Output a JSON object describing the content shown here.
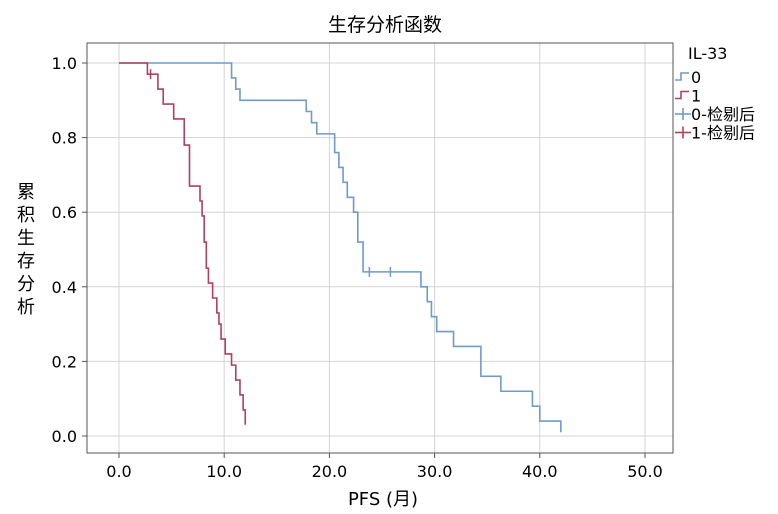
{
  "chart_data": {
    "type": "line",
    "title": "生存分析函数",
    "xlabel": "PFS (月)",
    "ylabel": "累积生存分析",
    "xlim": [
      0,
      50
    ],
    "ylim": [
      0,
      1
    ],
    "x_ticks": [
      "0.0",
      "10.0",
      "20.0",
      "30.0",
      "40.0",
      "50.0"
    ],
    "y_ticks": [
      "0.0",
      "0.2",
      "0.4",
      "0.6",
      "0.8",
      "1.0"
    ],
    "grid": true,
    "legend": {
      "title": "IL-33",
      "placement": "right",
      "entries": [
        "0",
        "1",
        "0-检剔后",
        "1-检剔后"
      ]
    },
    "series": [
      {
        "name": "0",
        "color": "#6f9bc8",
        "x": [
          0,
          10.7,
          11.1,
          11.5,
          12.0,
          17.8,
          18.3,
          18.8,
          19.3,
          20.5,
          20.9,
          21.3,
          21.7,
          22.3,
          22.7,
          23.2,
          28.7,
          29.3,
          29.7,
          30.2,
          31.8,
          34.4,
          36.3,
          39.3,
          40.0,
          42.0
        ],
        "y": [
          1.0,
          0.96,
          0.93,
          0.9,
          0.9,
          0.87,
          0.84,
          0.81,
          0.81,
          0.76,
          0.72,
          0.68,
          0.64,
          0.6,
          0.52,
          0.44,
          0.4,
          0.36,
          0.32,
          0.28,
          0.24,
          0.16,
          0.12,
          0.08,
          0.04,
          0.01
        ]
      },
      {
        "name": "1",
        "color": "#b04060",
        "x": [
          0,
          2.7,
          3.7,
          4.2,
          5.2,
          6.2,
          6.7,
          7.7,
          7.9,
          8.1,
          8.3,
          8.5,
          8.9,
          9.3,
          9.5,
          9.7,
          10.1,
          10.7,
          11.1,
          11.5,
          11.8,
          12.0
        ],
        "y": [
          1.0,
          0.97,
          0.93,
          0.89,
          0.85,
          0.78,
          0.67,
          0.63,
          0.59,
          0.52,
          0.45,
          0.41,
          0.37,
          0.33,
          0.3,
          0.26,
          0.22,
          0.19,
          0.15,
          0.11,
          0.07,
          0.03
        ]
      }
    ],
    "censored": [
      {
        "series": "0",
        "x": 23.8,
        "y": 0.44,
        "color": "#6f9bc8"
      },
      {
        "series": "0",
        "x": 25.8,
        "y": 0.44,
        "color": "#6f9bc8"
      },
      {
        "series": "1",
        "x": 3.0,
        "y": 0.97,
        "color": "#b04060"
      }
    ]
  }
}
